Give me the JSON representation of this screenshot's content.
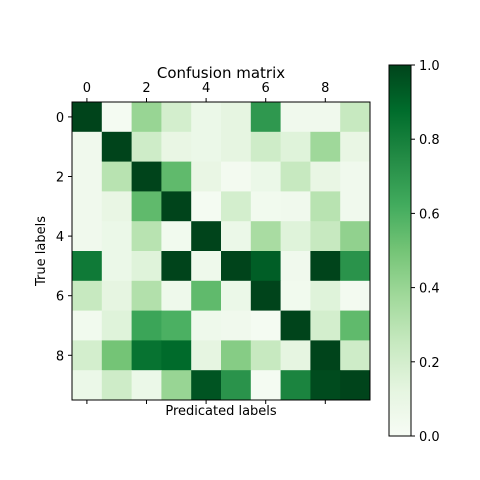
{
  "chart_data": {
    "type": "heatmap",
    "title": "Confusion matrix",
    "xlabel": "Predicated labels",
    "ylabel": "True labels",
    "x_ticks": [
      "0",
      "2",
      "4",
      "6",
      "8"
    ],
    "y_ticks": [
      "0",
      "2",
      "4",
      "6",
      "8"
    ],
    "colorbar_ticks": [
      "0.0",
      "0.2",
      "0.4",
      "0.6",
      "0.8",
      "1.0"
    ],
    "colorbar_range": [
      0.0,
      1.0
    ],
    "colormap": "Greens",
    "matrix": [
      [
        1.0,
        0.02,
        0.4,
        0.2,
        0.08,
        0.12,
        0.7,
        0.05,
        0.05,
        0.25
      ],
      [
        0.05,
        1.0,
        0.22,
        0.1,
        0.08,
        0.12,
        0.22,
        0.15,
        0.38,
        0.1
      ],
      [
        0.05,
        0.3,
        1.0,
        0.55,
        0.1,
        0.03,
        0.08,
        0.25,
        0.1,
        0.05
      ],
      [
        0.05,
        0.1,
        0.55,
        1.0,
        0.02,
        0.2,
        0.04,
        0.05,
        0.3,
        0.05
      ],
      [
        0.05,
        0.08,
        0.3,
        0.04,
        1.0,
        0.08,
        0.35,
        0.15,
        0.25,
        0.42
      ],
      [
        0.82,
        0.08,
        0.15,
        1.0,
        0.06,
        1.0,
        0.92,
        0.05,
        1.0,
        0.72
      ],
      [
        0.25,
        0.12,
        0.32,
        0.06,
        0.55,
        0.08,
        1.0,
        0.04,
        0.15,
        0.03
      ],
      [
        0.04,
        0.15,
        0.65,
        0.6,
        0.06,
        0.05,
        0.02,
        1.0,
        0.2,
        0.55
      ],
      [
        0.2,
        0.5,
        0.85,
        0.88,
        0.12,
        0.45,
        0.25,
        0.12,
        1.0,
        0.22
      ],
      [
        0.08,
        0.22,
        0.08,
        0.4,
        0.95,
        0.72,
        0.02,
        0.78,
        0.98,
        1.0
      ]
    ]
  }
}
